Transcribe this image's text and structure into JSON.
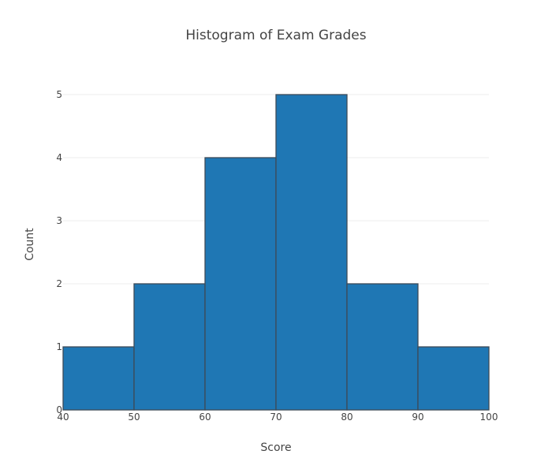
{
  "chart_data": {
    "type": "bar",
    "title": "Histogram of Exam Grades",
    "xlabel": "Score",
    "ylabel": "Count",
    "bin_edges": [
      40,
      50,
      60,
      70,
      80,
      90,
      100
    ],
    "values": [
      1,
      2,
      4,
      5,
      2,
      1
    ],
    "xlim": [
      40,
      100
    ],
    "ylim": [
      0,
      5.5
    ],
    "x_ticks": [
      40,
      50,
      60,
      70,
      80,
      90,
      100
    ],
    "y_ticks": [
      0,
      1,
      2,
      3,
      4,
      5
    ],
    "grid": "horizontal",
    "legend": false,
    "colors": {
      "bar_fill": "#1f77b4",
      "bar_outline": "#3d4a57",
      "grid": "#eeeeee",
      "text": "#444444"
    }
  }
}
